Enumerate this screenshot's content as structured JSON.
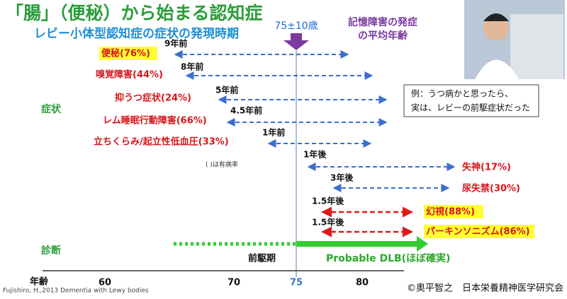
{
  "header": {
    "title": "「腸」（便秘）から始まる認知症",
    "subtitle": "レビー小体型認知症の症状の発現時期",
    "mean_age": "75±10歳",
    "mean_age_note": [
      "記憶障害の発症",
      "の平均年齢"
    ]
  },
  "symptoms_label": "症状",
  "diagnosis_label": "診断",
  "prevalence_note": "(  )は有病率",
  "symptoms": [
    {
      "label": "便秘(76%)",
      "timing": "9年前"
    },
    {
      "label": "嗅覚障害(44%)",
      "timing": "8年前"
    },
    {
      "label": "抑うつ症状(24%)",
      "timing": "5年前"
    },
    {
      "label": "レム睡眠行動障害(66%)",
      "timing": "4.5年前"
    },
    {
      "label": "立ちくらみ/起立性低血圧(33%)",
      "timing": "1年前"
    },
    {
      "label": "失神(17%)",
      "timing": "1年後"
    },
    {
      "label": "尿失禁(30%)",
      "timing": "3年後"
    },
    {
      "label": "幻視(88%)",
      "timing": "1.5年後"
    },
    {
      "label": "パーキンソニズム(86%)",
      "timing": "1.5年後"
    }
  ],
  "example": [
    "例：うつ病かと思ったら、",
    "実は、レビーの前駆症状だった"
  ],
  "phases": {
    "prodromal": "前駆期",
    "probable": "Probable DLB(ほぼ確実)"
  },
  "axis": {
    "label": "年齢",
    "ticks": [
      "60",
      "70",
      "75",
      "80"
    ]
  },
  "footer": {
    "citation": "Fujishiro, H.,2013 Dementia with Lewy bodies",
    "credit": "©奥平智之　日本栄養精神医学研究会"
  }
}
